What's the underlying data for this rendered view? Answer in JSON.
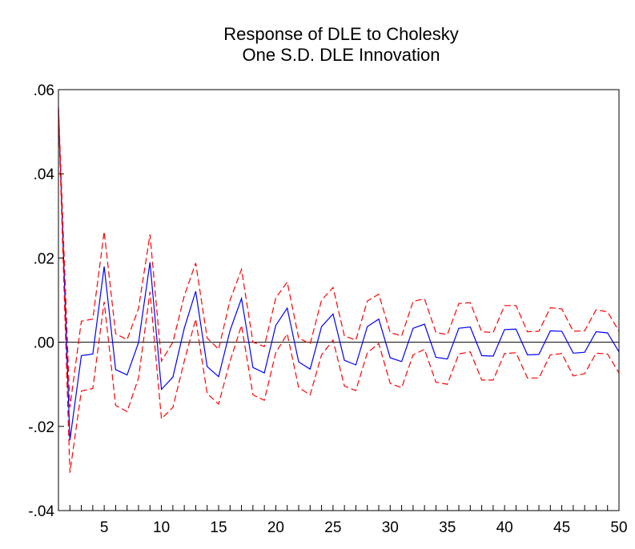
{
  "chart_data": {
    "type": "line",
    "title": [
      "Response of DLE to Cholesky",
      "One S.D. DLE Innovation"
    ],
    "xlabel": "",
    "ylabel": "",
    "xlim": [
      1,
      50
    ],
    "ylim": [
      -0.04,
      0.06
    ],
    "x_ticks": [
      5,
      10,
      15,
      20,
      25,
      30,
      35,
      40,
      45,
      50
    ],
    "x_tick_labels": [
      "5",
      "10",
      "15",
      "20",
      "25",
      "30",
      "35",
      "40",
      "45",
      "50"
    ],
    "y_ticks": [
      -0.04,
      -0.02,
      0.0,
      0.02,
      0.04,
      0.06
    ],
    "y_tick_labels": [
      "-.04",
      "-.02",
      ".00",
      ".02",
      ".04",
      ".06"
    ],
    "grid": false,
    "zero_line": true,
    "legend": "none",
    "x": [
      1,
      2,
      3,
      4,
      5,
      6,
      7,
      8,
      9,
      10,
      11,
      12,
      13,
      14,
      15,
      16,
      17,
      18,
      19,
      20,
      21,
      22,
      23,
      24,
      25,
      26,
      27,
      28,
      29,
      30,
      31,
      32,
      33,
      34,
      35,
      36,
      37,
      38,
      39,
      40,
      41,
      42,
      43,
      44,
      45,
      46,
      47,
      48,
      49,
      50
    ],
    "series": [
      {
        "color": "#0000ff",
        "dash": "solid",
        "values": [
          0.0553,
          -0.0233,
          -0.0032,
          -0.0028,
          0.018,
          -0.0065,
          -0.0078,
          -0.0001,
          0.019,
          -0.0112,
          -0.0083,
          0.0033,
          0.0121,
          -0.0058,
          -0.0082,
          0.0028,
          0.0104,
          -0.006,
          -0.0073,
          0.004,
          0.0081,
          -0.0047,
          -0.0064,
          0.0037,
          0.0067,
          -0.0043,
          -0.0054,
          0.0037,
          0.0055,
          -0.0037,
          -0.0046,
          0.0033,
          0.0043,
          -0.0036,
          -0.004,
          0.0033,
          0.0036,
          -0.0032,
          -0.0033,
          0.003,
          0.0031,
          -0.003,
          -0.0029,
          0.0027,
          0.0026,
          -0.0026,
          -0.0024,
          0.0025,
          0.0022,
          -0.0023
        ]
      },
      {
        "color": "#ff0000",
        "dash": "dashed",
        "values": [
          0.056,
          -0.0155,
          0.005,
          0.0055,
          0.0263,
          0.002,
          0.0006,
          0.008,
          0.0256,
          -0.0045,
          0.0,
          0.011,
          0.0188,
          0.001,
          -0.0017,
          0.01,
          0.0173,
          0.0,
          -0.001,
          0.0105,
          0.0143,
          0.001,
          -0.0004,
          0.01,
          0.013,
          0.0015,
          0.0005,
          0.0098,
          0.0114,
          0.0023,
          0.0015,
          0.0097,
          0.0103,
          0.0023,
          0.0018,
          0.0092,
          0.0094,
          0.0025,
          0.0023,
          0.0087,
          0.0087,
          0.0025,
          0.0026,
          0.0082,
          0.0079,
          0.0026,
          0.0027,
          0.0077,
          0.0072,
          0.0026
        ]
      },
      {
        "color": "#ff0000",
        "dash": "dashed",
        "values": [
          0.0545,
          -0.031,
          -0.0116,
          -0.011,
          0.0096,
          -0.015,
          -0.0165,
          -0.0085,
          0.012,
          -0.0182,
          -0.0155,
          -0.0045,
          0.0055,
          -0.0122,
          -0.0147,
          -0.0045,
          0.004,
          -0.0125,
          -0.0138,
          -0.0025,
          0.002,
          -0.0108,
          -0.0125,
          -0.003,
          0.0005,
          -0.0104,
          -0.0115,
          -0.0025,
          -0.0003,
          -0.0098,
          -0.0108,
          -0.003,
          -0.0017,
          -0.0095,
          -0.01,
          -0.0028,
          -0.0023,
          -0.009,
          -0.009,
          -0.0027,
          -0.0025,
          -0.0085,
          -0.0085,
          -0.003,
          -0.0027,
          -0.008,
          -0.0075,
          -0.0026,
          -0.0028,
          -0.0073
        ]
      }
    ]
  }
}
